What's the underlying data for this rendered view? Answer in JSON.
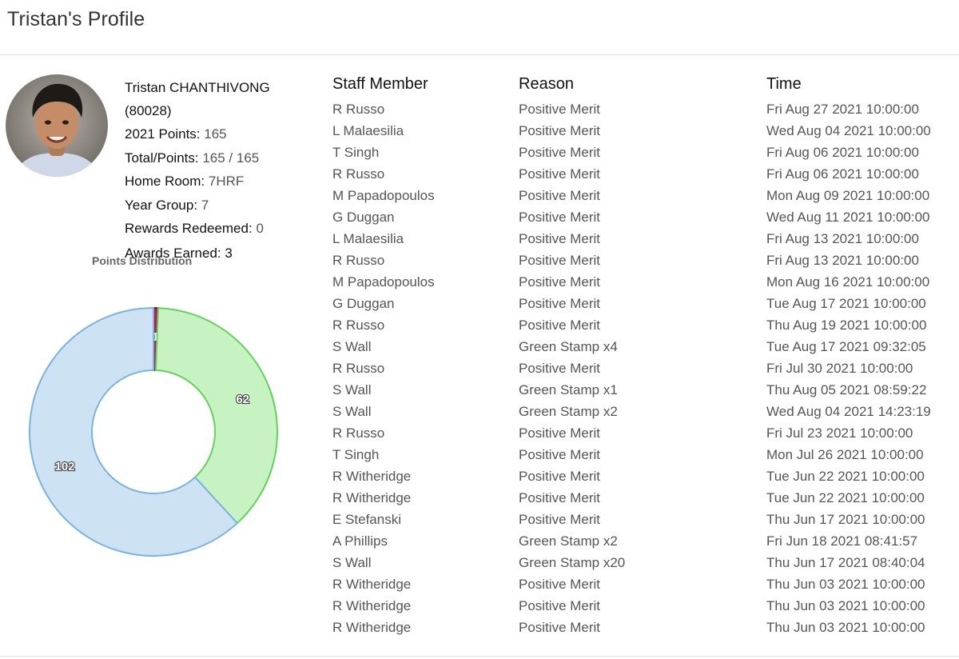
{
  "page": {
    "title": "Tristan's Profile"
  },
  "profile": {
    "name": "Tristan CHANTHIVONG",
    "student_id": "(80028)",
    "points_label": "2021 Points:",
    "points_value": "165",
    "total_label": "Total/Points:",
    "total_value": "165 / 165",
    "homeroom_label": "Home Room:",
    "homeroom_value": "7HRF",
    "year_label": "Year Group:",
    "year_value": "7",
    "rewards_label": "Rewards Redeemed:",
    "rewards_value": "0",
    "awards_label": "Awards Earned:",
    "awards_value": "3"
  },
  "chart_data": {
    "type": "pie",
    "title": "Points Distribution",
    "donut": true,
    "slices": [
      {
        "value": 1,
        "label": "1",
        "color": "#c2185b",
        "stroke": "#7a0f36"
      },
      {
        "value": 62,
        "label": "62",
        "color": "#c6f3c1",
        "stroke": "#63d35a"
      },
      {
        "value": 102,
        "label": "102",
        "color": "#cde2f2",
        "stroke": "#7ab3df"
      }
    ]
  },
  "table": {
    "headers": [
      "Staff Member",
      "Reason",
      "Time"
    ],
    "rows": [
      [
        "R Russo",
        "Positive Merit",
        "Fri Aug 27 2021 10:00:00"
      ],
      [
        "L Malaesilia",
        "Positive Merit",
        "Wed Aug 04 2021 10:00:00"
      ],
      [
        "T Singh",
        "Positive Merit",
        "Fri Aug 06 2021 10:00:00"
      ],
      [
        "R Russo",
        "Positive Merit",
        "Fri Aug 06 2021 10:00:00"
      ],
      [
        "M Papadopoulos",
        "Positive Merit",
        "Mon Aug 09 2021 10:00:00"
      ],
      [
        "G Duggan",
        "Positive Merit",
        "Wed Aug 11 2021 10:00:00"
      ],
      [
        "L Malaesilia",
        "Positive Merit",
        "Fri Aug 13 2021 10:00:00"
      ],
      [
        "R Russo",
        "Positive Merit",
        "Fri Aug 13 2021 10:00:00"
      ],
      [
        "M Papadopoulos",
        "Positive Merit",
        "Mon Aug 16 2021 10:00:00"
      ],
      [
        "G Duggan",
        "Positive Merit",
        "Tue Aug 17 2021 10:00:00"
      ],
      [
        "R Russo",
        "Positive Merit",
        "Thu Aug 19 2021 10:00:00"
      ],
      [
        "S Wall",
        "Green Stamp x4",
        "Tue Aug 17 2021 09:32:05"
      ],
      [
        "R Russo",
        "Positive Merit",
        "Fri Jul 30 2021 10:00:00"
      ],
      [
        "S Wall",
        "Green Stamp x1",
        "Thu Aug 05 2021 08:59:22"
      ],
      [
        "S Wall",
        "Green Stamp x2",
        "Wed Aug 04 2021 14:23:19"
      ],
      [
        "R Russo",
        "Positive Merit",
        "Fri Jul 23 2021 10:00:00"
      ],
      [
        "T Singh",
        "Positive Merit",
        "Mon Jul 26 2021 10:00:00"
      ],
      [
        "R Witheridge",
        "Positive Merit",
        "Tue Jun 22 2021 10:00:00"
      ],
      [
        "R Witheridge",
        "Positive Merit",
        "Tue Jun 22 2021 10:00:00"
      ],
      [
        "E Stefanski",
        "Positive Merit",
        "Thu Jun 17 2021 10:00:00"
      ],
      [
        "A Phillips",
        "Green Stamp x2",
        "Fri Jun 18 2021 08:41:57"
      ],
      [
        "S Wall",
        "Green Stamp x20",
        "Thu Jun 17 2021 08:40:04"
      ],
      [
        "R Witheridge",
        "Positive Merit",
        "Thu Jun 03 2021 10:00:00"
      ],
      [
        "R Witheridge",
        "Positive Merit",
        "Thu Jun 03 2021 10:00:00"
      ],
      [
        "R Witheridge",
        "Positive Merit",
        "Thu Jun 03 2021 10:00:00"
      ]
    ]
  }
}
